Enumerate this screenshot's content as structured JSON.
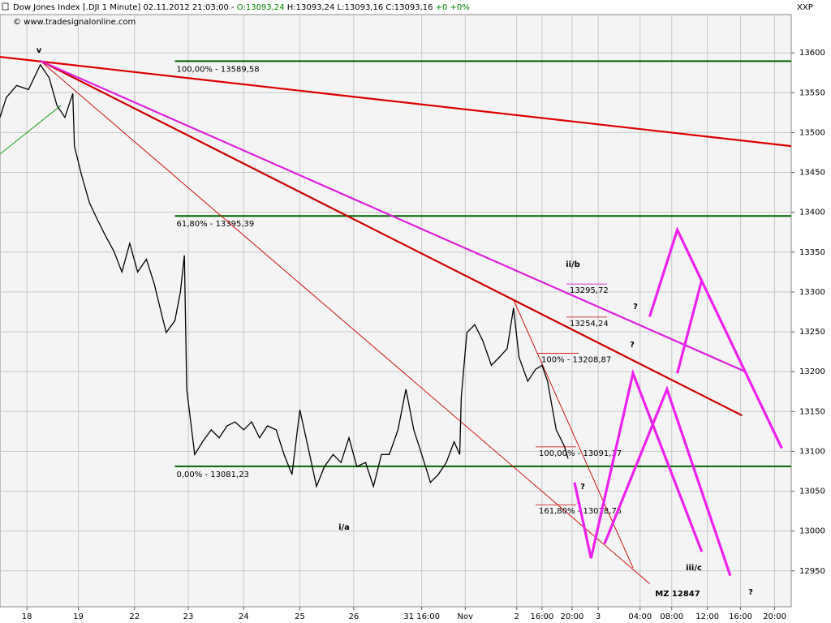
{
  "header": {
    "title": "Dow Jones Index [.DJI  1 Minute] 02.11.2012 21:03:00 -",
    "open": "O:13093,24",
    "hlc": "H:13093,24 L:13093,16 C:13093,16",
    "change": "+0 +0%",
    "copyright": "© www.tradesignalonline.com",
    "symbol": "XXP"
  },
  "chart_data": {
    "type": "line",
    "color": "#000000",
    "grid": true,
    "ylim": [
      12905,
      13648
    ],
    "yticks": [
      12950,
      13000,
      13050,
      13100,
      13150,
      13200,
      13250,
      13300,
      13350,
      13400,
      13450,
      13500,
      13550,
      13600
    ],
    "xlim": [
      0,
      100
    ],
    "xticks": [
      {
        "value": 3.4,
        "label": "18"
      },
      {
        "value": 9.9,
        "label": "19"
      },
      {
        "value": 17.0,
        "label": "22"
      },
      {
        "value": 23.8,
        "label": "23"
      },
      {
        "value": 30.8,
        "label": "24"
      },
      {
        "value": 37.9,
        "label": "25"
      },
      {
        "value": 44.7,
        "label": "26"
      },
      {
        "value": 53.3,
        "label": "31 16:00"
      },
      {
        "value": 58.8,
        "label": "Nov"
      },
      {
        "value": 65.3,
        "label": "2"
      },
      {
        "value": 68.5,
        "label": "16:00"
      },
      {
        "value": 72.3,
        "label": "20:00"
      },
      {
        "value": 75.6,
        "label": "3"
      },
      {
        "value": 80.9,
        "label": "04:00"
      },
      {
        "value": 84.9,
        "label": "08:00"
      },
      {
        "value": 89.4,
        "label": "12:00"
      },
      {
        "value": 93.6,
        "label": "16:00"
      },
      {
        "value": 97.9,
        "label": "20:00"
      }
    ],
    "x": [
      0,
      0.8,
      2.1,
      3.6,
      5.1,
      6.2,
      7.2,
      8.2,
      9.2,
      9.4,
      10.3,
      11.3,
      12.3,
      13.3,
      14.4,
      15.4,
      16.4,
      17.4,
      18.5,
      19.5,
      20.5,
      21.0,
      22.1,
      22.8,
      23.3,
      23.6,
      24.1,
      24.6,
      25.6,
      26.7,
      27.7,
      28.7,
      29.7,
      30.8,
      31.8,
      32.8,
      33.8,
      34.9,
      35.9,
      36.9,
      37.9,
      39.0,
      40.0,
      41.0,
      42.1,
      43.1,
      44.1,
      45.1,
      46.2,
      47.2,
      48.2,
      49.2,
      50.3,
      51.3,
      52.3,
      53.3,
      54.4,
      55.4,
      56.4,
      57.4,
      58.1,
      58.3,
      59.0,
      60.0,
      61.0,
      62.1,
      63.1,
      64.1,
      64.9,
      65.6,
      66.7,
      67.7,
      68.5,
      69.2,
      70.3,
      71.3,
      71.8
    ],
    "values": [
      13519,
      13544,
      13559,
      13554,
      13585,
      13569,
      13534,
      13519,
      13549,
      13483,
      13447,
      13412,
      13391,
      13371,
      13351,
      13325,
      13361,
      13325,
      13341,
      13310,
      13269,
      13249,
      13264,
      13300,
      13346,
      13178,
      13137,
      13096,
      13112,
      13127,
      13117,
      13132,
      13137,
      13127,
      13137,
      13117,
      13132,
      13127,
      13096,
      13071,
      13152,
      13102,
      13056,
      13081,
      13096,
      13086,
      13117,
      13081,
      13086,
      13056,
      13096,
      13096,
      13127,
      13178,
      13127,
      13096,
      13061,
      13071,
      13086,
      13112,
      13096,
      13168,
      13249,
      13259,
      13239,
      13208,
      13218,
      13229,
      13280,
      13218,
      13188,
      13203,
      13208,
      13188,
      13127,
      13107,
      13091
    ],
    "levels": [
      {
        "label": "100,00% - 13589,58",
        "value": 13589.58,
        "color": "#006400",
        "x": [
          22.1,
          100
        ]
      },
      {
        "label": "61,80% - 13395,39",
        "value": 13395.39,
        "color": "#006400",
        "x": [
          22.1,
          100
        ]
      },
      {
        "label": "0,00% - 13081,23",
        "value": 13081.23,
        "color": "#006400",
        "x": [
          22.1,
          100
        ]
      }
    ],
    "price_labels": [
      {
        "label": "13295,72",
        "value": 13295.72,
        "color": "#cc00cc"
      },
      {
        "label": "13254,24",
        "value": 13254.24,
        "color": "#cc0000"
      },
      {
        "label": "100% - 13208,87",
        "value": 13208.87,
        "color": "#cc0000"
      },
      {
        "label": "100,00% - 13091,37",
        "value": 13091.37,
        "color": "#cc0000"
      },
      {
        "label": "161,80% - 13018,75",
        "value": 13018.75,
        "color": "#cc0000"
      }
    ],
    "trendlines": [
      {
        "color": "#dd0000",
        "weight": "thick",
        "x": [
          0,
          100
        ],
        "values": [
          13595,
          13483
        ]
      },
      {
        "color": "#cc0000",
        "weight": "thick",
        "x": [
          5.1,
          93.8
        ],
        "values": [
          13590,
          13145
        ]
      },
      {
        "color": "#cc0000",
        "weight": "thin",
        "x": [
          5.1,
          82.1
        ],
        "values": [
          13590,
          12934
        ]
      },
      {
        "color": "#dd22dd",
        "weight": "thick",
        "x": [
          5.1,
          94.2
        ],
        "values": [
          13590,
          13200
        ]
      },
      {
        "color": "#009900",
        "weight": "thin",
        "x": [
          0,
          7.7
        ],
        "values": [
          13473,
          13534
        ]
      },
      {
        "color": "#cc0000",
        "weight": "thin",
        "x": [
          64.9,
          80.0
        ],
        "values": [
          13290,
          12954
        ]
      }
    ],
    "waves": [
      {
        "color": "#ee22ee",
        "x": [
          72.6,
          74.7,
          80.0,
          88.7
        ],
        "values": [
          13061,
          12966,
          13198,
          12974
        ]
      },
      {
        "color": "#ee22ee",
        "x": [
          76.4,
          84.3,
          92.3
        ],
        "values": [
          12984,
          13178,
          12944
        ]
      },
      {
        "color": "#ee22ee",
        "x": [
          82.1,
          85.6,
          98.8
        ],
        "values": [
          13269,
          13378,
          13104
        ]
      },
      {
        "color": "#ee22ee",
        "x": [
          85.6,
          88.7
        ],
        "values": [
          13198,
          13315
        ]
      }
    ],
    "annotations": [
      {
        "text": "v",
        "color": "#006400"
      },
      {
        "text": "ii/b",
        "color": "#dd0000"
      },
      {
        "text": "i/a",
        "color": "#dd0000"
      },
      {
        "text": "iii/c",
        "color": "#dd0000"
      },
      {
        "text": "MZ 12847",
        "color": "#dd0000"
      },
      {
        "text": "?",
        "color": "#dd22dd"
      },
      {
        "text": "?",
        "color": "#dd22dd"
      },
      {
        "text": "?",
        "color": "#dd22dd"
      },
      {
        "text": "?",
        "color": "#dd0000"
      }
    ]
  }
}
